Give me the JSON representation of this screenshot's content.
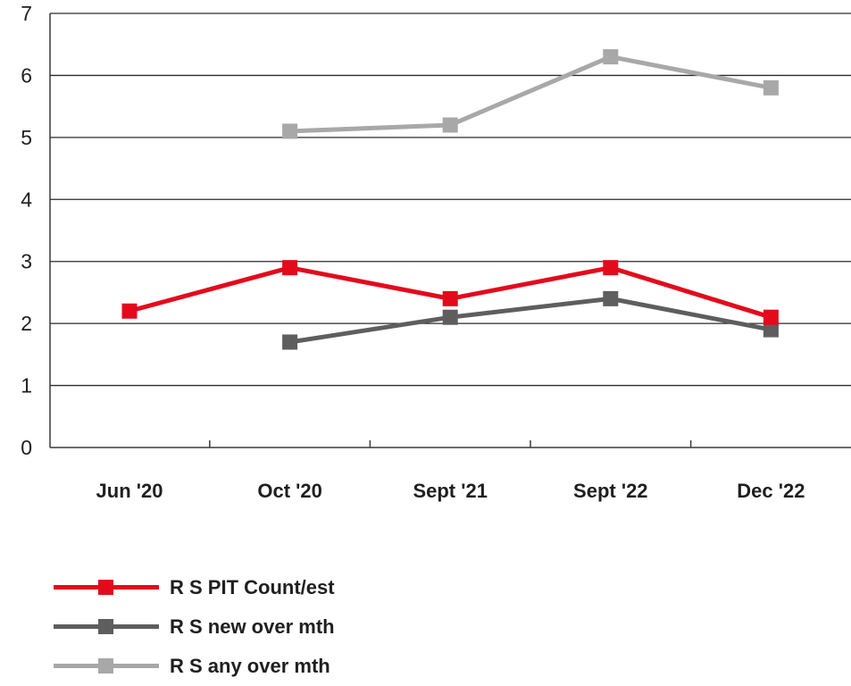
{
  "chart_data": {
    "type": "line",
    "categories": [
      "Jun '20",
      "Oct '20",
      "Sept '21",
      "Sept '22",
      "Dec '22"
    ],
    "ylim": [
      0,
      7
    ],
    "yticks": [
      0,
      1,
      2,
      3,
      4,
      5,
      6,
      7
    ],
    "grid": true,
    "legend_position": "bottom-left",
    "series": [
      {
        "name": "R S PIT Count/est",
        "color": "#e30a1c",
        "values": [
          2.2,
          2.9,
          2.4,
          2.9,
          2.1
        ]
      },
      {
        "name": "R S new over mth",
        "color": "#5e5e5e",
        "values": [
          null,
          1.7,
          2.1,
          2.4,
          1.9
        ]
      },
      {
        "name": "R S any over mth",
        "color": "#a8a8a8",
        "values": [
          null,
          5.1,
          5.2,
          6.3,
          5.8
        ]
      }
    ]
  }
}
